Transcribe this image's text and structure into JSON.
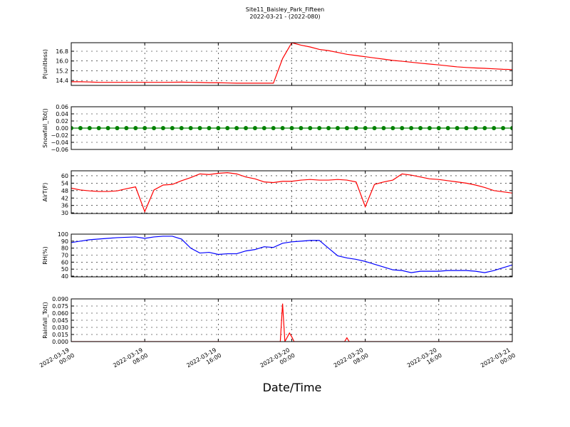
{
  "title": "Site11_Baisley_Park_Fifteen",
  "subtitle": "2022-03-21 - (2022-080)",
  "xlabel": "Date/Time",
  "xlim": [
    "2022-03-19 00:00",
    "2022-03-21 00:00"
  ],
  "xticks": [
    "2022-03-19 00:00",
    "2022-03-19 08:00",
    "2022-03-19 16:00",
    "2022-03-20 00:00",
    "2022-03-20 08:00",
    "2022-03-20 16:00",
    "2022-03-21 00:00"
  ],
  "chart_data": [
    {
      "type": "line",
      "ylabel": "P(unitless)",
      "color": "#ff0000",
      "grid": true,
      "ylim": [
        14.0,
        17.5
      ],
      "yticks": [
        14.4,
        15.2,
        {
          "value": 16,
          "label": "16.0"
        },
        16.8
      ],
      "x": [
        "2022-03-19 00:00",
        "2022-03-19 01:00",
        "2022-03-19 02:00",
        "2022-03-19 03:00",
        "2022-03-19 04:00",
        "2022-03-19 05:00",
        "2022-03-19 06:00",
        "2022-03-19 07:00",
        "2022-03-19 08:00",
        "2022-03-19 09:00",
        "2022-03-19 10:00",
        "2022-03-19 11:00",
        "2022-03-19 12:00",
        "2022-03-19 13:00",
        "2022-03-19 14:00",
        "2022-03-19 15:00",
        "2022-03-19 16:00",
        "2022-03-19 17:00",
        "2022-03-19 18:00",
        "2022-03-19 19:00",
        "2022-03-19 20:00",
        "2022-03-19 21:00",
        "2022-03-19 22:00",
        "2022-03-19 23:00",
        "2022-03-20 00:00",
        "2022-03-20 01:00",
        "2022-03-20 02:00",
        "2022-03-20 03:00",
        "2022-03-20 04:00",
        "2022-03-20 05:00",
        "2022-03-20 06:00",
        "2022-03-20 07:00",
        "2022-03-20 08:00",
        "2022-03-20 09:00",
        "2022-03-20 10:00",
        "2022-03-20 11:00",
        "2022-03-20 12:00",
        "2022-03-20 13:00",
        "2022-03-20 14:00",
        "2022-03-20 15:00",
        "2022-03-20 16:00",
        "2022-03-20 17:00",
        "2022-03-20 18:00",
        "2022-03-20 19:00",
        "2022-03-20 20:00",
        "2022-03-20 21:00",
        "2022-03-20 22:00",
        "2022-03-20 23:00",
        "2022-03-21 00:00"
      ],
      "values": [
        14.3,
        14.3,
        14.28,
        14.25,
        14.25,
        14.25,
        14.25,
        14.25,
        14.25,
        14.25,
        14.25,
        14.26,
        14.27,
        14.25,
        14.24,
        14.22,
        14.22,
        14.2,
        14.18,
        14.18,
        14.18,
        14.18,
        14.18,
        16.2,
        17.5,
        17.3,
        17.15,
        16.95,
        16.85,
        16.7,
        16.55,
        16.45,
        16.35,
        16.25,
        16.15,
        16.05,
        15.98,
        15.9,
        15.82,
        15.75,
        15.68,
        15.6,
        15.52,
        15.47,
        15.43,
        15.4,
        15.36,
        15.32,
        15.3
      ]
    },
    {
      "type": "line",
      "ylabel": "Snowfall_Tot()",
      "color": "#008000",
      "marker": "o",
      "grid": true,
      "ylim": [
        -0.06,
        0.06
      ],
      "yticks": [
        {
          "value": -0.06,
          "label": "−0.06"
        },
        {
          "value": -0.04,
          "label": "−0.04"
        },
        {
          "value": -0.02,
          "label": "−0.02"
        },
        {
          "value": 0,
          "label": "0.00"
        },
        0.02,
        0.04,
        0.06
      ],
      "x": [
        "2022-03-19 00:00",
        "2022-03-19 01:00",
        "2022-03-19 02:00",
        "2022-03-19 03:00",
        "2022-03-19 04:00",
        "2022-03-19 05:00",
        "2022-03-19 06:00",
        "2022-03-19 07:00",
        "2022-03-19 08:00",
        "2022-03-19 09:00",
        "2022-03-19 10:00",
        "2022-03-19 11:00",
        "2022-03-19 12:00",
        "2022-03-19 13:00",
        "2022-03-19 14:00",
        "2022-03-19 15:00",
        "2022-03-19 16:00",
        "2022-03-19 17:00",
        "2022-03-19 18:00",
        "2022-03-19 19:00",
        "2022-03-19 20:00",
        "2022-03-19 21:00",
        "2022-03-19 22:00",
        "2022-03-19 23:00",
        "2022-03-20 00:00",
        "2022-03-20 01:00",
        "2022-03-20 02:00",
        "2022-03-20 03:00",
        "2022-03-20 04:00",
        "2022-03-20 05:00",
        "2022-03-20 06:00",
        "2022-03-20 07:00",
        "2022-03-20 08:00",
        "2022-03-20 09:00",
        "2022-03-20 10:00",
        "2022-03-20 11:00",
        "2022-03-20 12:00",
        "2022-03-20 13:00",
        "2022-03-20 14:00",
        "2022-03-20 15:00",
        "2022-03-20 16:00",
        "2022-03-20 17:00",
        "2022-03-20 18:00",
        "2022-03-20 19:00",
        "2022-03-20 20:00",
        "2022-03-20 21:00",
        "2022-03-20 22:00",
        "2022-03-20 23:00",
        "2022-03-21 00:00"
      ],
      "values": [
        0,
        0,
        0,
        0,
        0,
        0,
        0,
        0,
        0,
        0,
        0,
        0,
        0,
        0,
        0,
        0,
        0,
        0,
        0,
        0,
        0,
        0,
        0,
        0,
        0,
        0,
        0,
        0,
        0,
        0,
        0,
        0,
        0,
        0,
        0,
        0,
        0,
        0,
        0,
        0,
        0,
        0,
        0,
        0,
        0,
        0,
        0,
        0,
        0
      ]
    },
    {
      "type": "line",
      "ylabel": "AirT(F)",
      "color": "#ff0000",
      "grid": true,
      "ylim": [
        29.5,
        64
      ],
      "yticks": [
        30,
        36,
        42,
        48,
        54,
        60
      ],
      "x": [
        "2022-03-19 00:00",
        "2022-03-19 01:00",
        "2022-03-19 02:00",
        "2022-03-19 03:00",
        "2022-03-19 04:00",
        "2022-03-19 05:00",
        "2022-03-19 06:00",
        "2022-03-19 07:00",
        "2022-03-19 08:00",
        "2022-03-19 09:00",
        "2022-03-19 10:00",
        "2022-03-19 11:00",
        "2022-03-19 12:00",
        "2022-03-19 13:00",
        "2022-03-19 14:00",
        "2022-03-19 15:00",
        "2022-03-19 16:00",
        "2022-03-19 17:00",
        "2022-03-19 18:00",
        "2022-03-19 19:00",
        "2022-03-19 20:00",
        "2022-03-19 21:00",
        "2022-03-19 22:00",
        "2022-03-19 23:00",
        "2022-03-20 00:00",
        "2022-03-20 01:00",
        "2022-03-20 02:00",
        "2022-03-20 03:00",
        "2022-03-20 04:00",
        "2022-03-20 05:00",
        "2022-03-20 06:00",
        "2022-03-20 07:00",
        "2022-03-20 08:00",
        "2022-03-20 09:00",
        "2022-03-20 10:00",
        "2022-03-20 11:00",
        "2022-03-20 12:00",
        "2022-03-20 13:00",
        "2022-03-20 14:00",
        "2022-03-20 15:00",
        "2022-03-20 16:00",
        "2022-03-20 17:00",
        "2022-03-20 18:00",
        "2022-03-20 19:00",
        "2022-03-20 20:00",
        "2022-03-20 21:00",
        "2022-03-20 22:00",
        "2022-03-20 23:00",
        "2022-03-21 00:00"
      ],
      "values": [
        50,
        48.5,
        47.8,
        47.3,
        47.3,
        47.8,
        49.5,
        51,
        31,
        48.5,
        52.5,
        53,
        56,
        58.5,
        61.5,
        61,
        62,
        62.5,
        61.5,
        59,
        57.5,
        55,
        54.5,
        55.5,
        55.5,
        56.5,
        57,
        56.5,
        56.5,
        57,
        56.5,
        55,
        35,
        53,
        55,
        56.5,
        61.5,
        60.5,
        59,
        57.5,
        57,
        56,
        55,
        54,
        52.5,
        50.5,
        48,
        47,
        46
      ]
    },
    {
      "type": "line",
      "ylabel": "RH(%)",
      "color": "#0000ff",
      "grid": true,
      "ylim": [
        39,
        100
      ],
      "yticks": [
        40,
        50,
        60,
        70,
        80,
        90,
        100
      ],
      "x": [
        "2022-03-19 00:00",
        "2022-03-19 01:00",
        "2022-03-19 02:00",
        "2022-03-19 03:00",
        "2022-03-19 04:00",
        "2022-03-19 05:00",
        "2022-03-19 06:00",
        "2022-03-19 07:00",
        "2022-03-19 08:00",
        "2022-03-19 09:00",
        "2022-03-19 10:00",
        "2022-03-19 11:00",
        "2022-03-19 12:00",
        "2022-03-19 13:00",
        "2022-03-19 14:00",
        "2022-03-19 15:00",
        "2022-03-19 16:00",
        "2022-03-19 17:00",
        "2022-03-19 18:00",
        "2022-03-19 19:00",
        "2022-03-19 20:00",
        "2022-03-19 21:00",
        "2022-03-19 22:00",
        "2022-03-19 23:00",
        "2022-03-20 00:00",
        "2022-03-20 01:00",
        "2022-03-20 02:00",
        "2022-03-20 03:00",
        "2022-03-20 04:00",
        "2022-03-20 05:00",
        "2022-03-20 06:00",
        "2022-03-20 07:00",
        "2022-03-20 08:00",
        "2022-03-20 09:00",
        "2022-03-20 10:00",
        "2022-03-20 11:00",
        "2022-03-20 12:00",
        "2022-03-20 13:00",
        "2022-03-20 14:00",
        "2022-03-20 15:00",
        "2022-03-20 16:00",
        "2022-03-20 17:00",
        "2022-03-20 18:00",
        "2022-03-20 19:00",
        "2022-03-20 20:00",
        "2022-03-20 21:00",
        "2022-03-20 22:00",
        "2022-03-20 23:00",
        "2022-03-21 00:00"
      ],
      "values": [
        88,
        90,
        92,
        93,
        94,
        95,
        95.5,
        96,
        94,
        96,
        97,
        97,
        93,
        80,
        73,
        74,
        71,
        72,
        72,
        76,
        78,
        82,
        81,
        87,
        89,
        90,
        91,
        91,
        80,
        69,
        66,
        64,
        61,
        57,
        53,
        49,
        48,
        45,
        47,
        47,
        47,
        48,
        48,
        48,
        47,
        45,
        48,
        52,
        56
      ]
    },
    {
      "type": "line",
      "ylabel": "Rainfall_Tot()",
      "color": "#ff0000",
      "grid": true,
      "ylim": [
        0,
        0.09
      ],
      "yticks": [
        {
          "value": 0,
          "label": "0.000"
        },
        0.015,
        {
          "value": 0.03,
          "label": "0.030"
        },
        0.045,
        {
          "value": 0.06,
          "label": "0.060"
        },
        0.075,
        {
          "value": 0.09,
          "label": "0.090"
        }
      ],
      "x": [
        "2022-03-19 00:00",
        "2022-03-19 22:45",
        "2022-03-19 23:00",
        "2022-03-19 23:15",
        "2022-03-19 23:45",
        "2022-03-20 00:00",
        "2022-03-20 00:15",
        "2022-03-20 05:45",
        "2022-03-20 06:00",
        "2022-03-20 06:15",
        "2022-03-21 00:00"
      ],
      "values": [
        0,
        0,
        0.08,
        0,
        0.018,
        0.01,
        0,
        0,
        0.008,
        0,
        0
      ]
    }
  ]
}
